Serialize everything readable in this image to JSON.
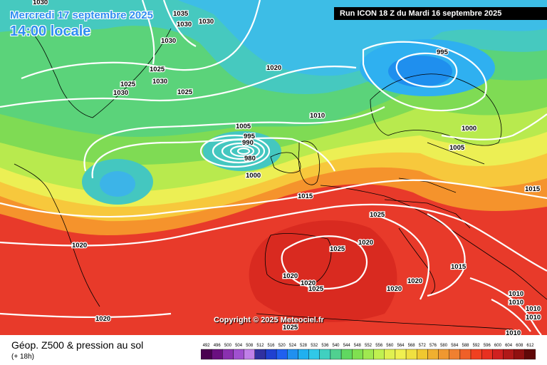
{
  "header": {
    "date": "Mercredi 17 septembre 2025",
    "time": "14:00 locale",
    "run": "Run ICON 18 Z du Mardi 16 septembre 2025"
  },
  "footer": {
    "title": "Géop. Z500 & pression au sol",
    "subtitle": "(+ 18h)",
    "copyright": "Copyright © 2025 Meteociel.fr"
  },
  "pressure_labels": [
    "1030",
    "1035",
    "1030",
    "1030",
    "1030",
    "1025",
    "1030",
    "1025",
    "1030",
    "1025",
    "1020",
    "995",
    "1010",
    "1005",
    "995",
    "990",
    "980",
    "1000",
    "1000",
    "1005",
    "1015",
    "1015",
    "1025",
    "1020",
    "1025",
    "1020",
    "1020",
    "1025",
    "1020",
    "1015",
    "1020",
    "1020",
    "1010",
    "1010",
    "1010",
    "1010",
    "1010",
    "1020",
    "1025"
  ],
  "legend_scale": [
    "492",
    "496",
    "500",
    "504",
    "508",
    "512",
    "516",
    "520",
    "524",
    "528",
    "532",
    "536",
    "540",
    "544",
    "548",
    "552",
    "556",
    "560",
    "564",
    "568",
    "572",
    "576",
    "580",
    "584",
    "588",
    "592",
    "596",
    "600",
    "604",
    "608",
    "612"
  ],
  "colors": {
    "title_blue": "#2f8df0",
    "isobar": "#ffffff"
  }
}
